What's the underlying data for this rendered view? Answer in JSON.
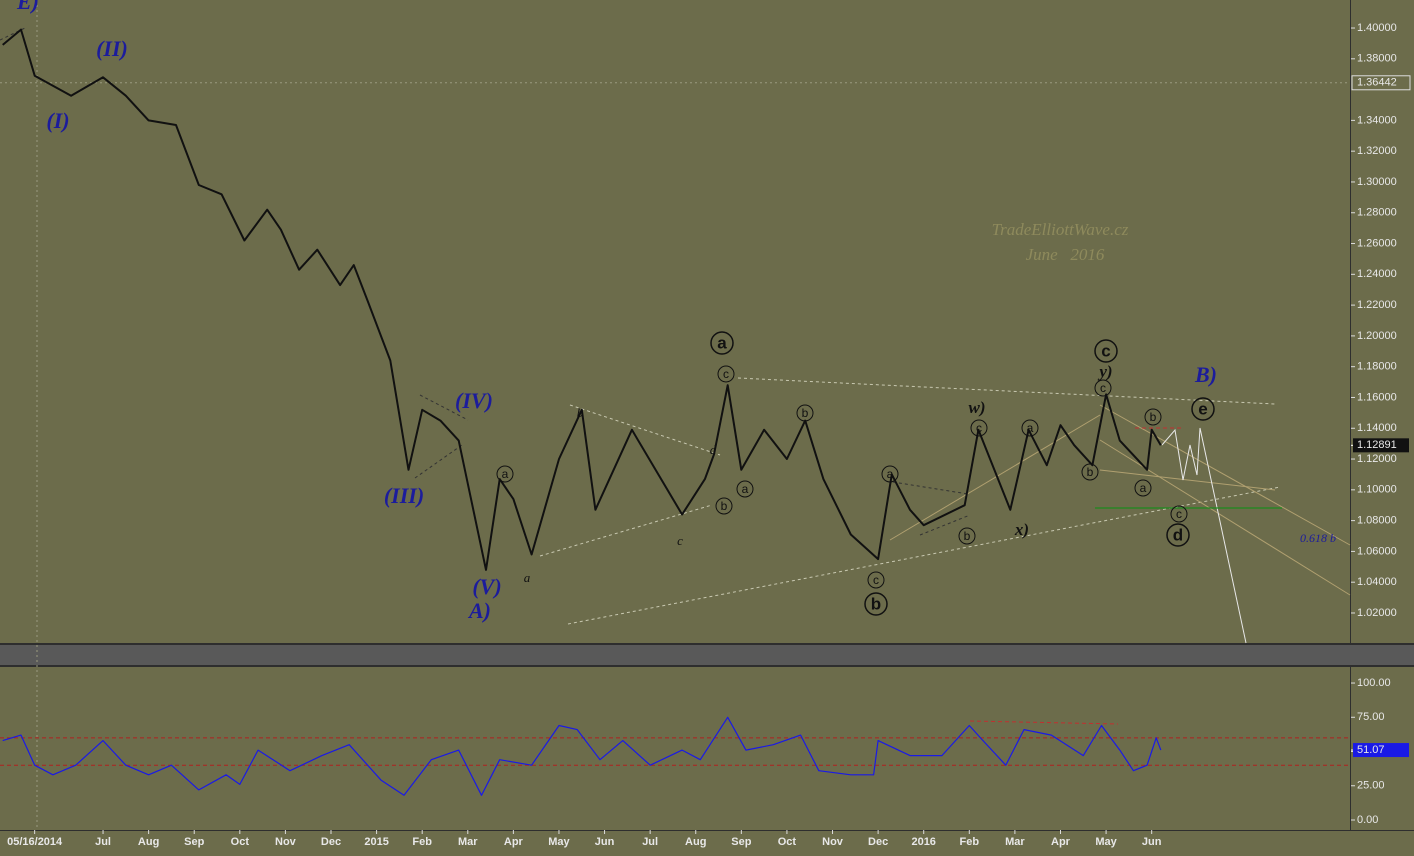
{
  "chart_data": [
    {
      "type": "line",
      "color": "#111111",
      "x": [
        -0.2,
        0.2,
        0.5,
        1.3,
        2.0,
        2.5,
        3.0,
        3.6,
        4.1,
        4.6,
        5.1,
        5.6,
        5.9,
        6.3,
        6.7,
        7.2,
        7.5,
        7.8,
        8.3,
        8.7,
        9.0,
        9.4,
        9.8,
        10.4,
        10.7,
        11.0,
        11.4,
        12.0,
        12.5,
        12.8,
        13.6,
        14.7,
        15.2,
        15.4,
        15.7,
        16.0,
        16.5,
        17.0,
        17.4,
        17.8,
        18.4,
        19.0,
        19.3,
        19.7,
        20.0,
        20.9,
        21.2,
        21.9,
        22.1,
        22.3,
        22.7,
        23.0,
        23.3,
        23.7,
        24.0,
        24.3,
        24.9,
        25.0,
        25.2
      ],
      "values": [
        1.389,
        1.399,
        1.369,
        1.356,
        1.368,
        1.356,
        1.34,
        1.337,
        1.298,
        1.292,
        1.262,
        1.282,
        1.269,
        1.243,
        1.256,
        1.233,
        1.246,
        1.223,
        1.184,
        1.113,
        1.152,
        1.145,
        1.132,
        1.048,
        1.107,
        1.094,
        1.058,
        1.12,
        1.152,
        1.087,
        1.139,
        1.084,
        1.107,
        1.123,
        1.168,
        1.113,
        1.139,
        1.12,
        1.145,
        1.107,
        1.071,
        1.055,
        1.11,
        1.087,
        1.077,
        1.09,
        1.139,
        1.087,
        1.113,
        1.139,
        1.116,
        1.142,
        1.129,
        1.116,
        1.162,
        1.132,
        1.113,
        1.139,
        1.129
      ],
      "xlim": [
        -0.26,
        29.35
      ],
      "ylim": [
        1.0005,
        1.4182
      ],
      "yticks": [
        {
          "value": 1.02,
          "label": "1.02000"
        },
        {
          "value": 1.04,
          "label": "1.04000"
        },
        {
          "value": 1.06,
          "label": "1.06000"
        },
        {
          "value": 1.08,
          "label": "1.08000"
        },
        {
          "value": 1.1,
          "label": "1.10000"
        },
        {
          "value": 1.12,
          "label": "1.12000"
        },
        {
          "value": 1.14,
          "label": "1.14000"
        },
        {
          "value": 1.16,
          "label": "1.16000"
        },
        {
          "value": 1.18,
          "label": "1.18000"
        },
        {
          "value": 1.2,
          "label": "1.20000"
        },
        {
          "value": 1.22,
          "label": "1.22000"
        },
        {
          "value": 1.24,
          "label": "1.24000"
        },
        {
          "value": 1.26,
          "label": "1.26000"
        },
        {
          "value": 1.28,
          "label": "1.28000"
        },
        {
          "value": 1.3,
          "label": "1.30000"
        },
        {
          "value": 1.32,
          "label": "1.32000"
        },
        {
          "value": 1.34,
          "label": "1.34000"
        },
        {
          "value": 1.38,
          "label": "1.38000"
        },
        {
          "value": 1.4,
          "label": "1.40000"
        }
      ],
      "price_marker": 1.36442,
      "current_value": 1.12891,
      "annotations": [
        "E)",
        "(II)",
        "(I)",
        "(IV)",
        "(III)",
        "(V)",
        "A)",
        "a",
        "b",
        "c",
        "d",
        "a",
        "c",
        "b",
        "a",
        "b",
        "a",
        "c",
        "b",
        "a",
        "b",
        "w)",
        "c",
        "x)",
        "a",
        "b",
        "c",
        "y)",
        "c",
        "b",
        "a",
        "c",
        "d",
        "e",
        "B)",
        "0.618 b"
      ],
      "watermark": [
        "TradeElliottWave.cz",
        "June   2016"
      ]
    },
    {
      "type": "line",
      "color": "#1a1ae6",
      "x": [
        -0.2,
        0.2,
        0.5,
        0.9,
        1.4,
        2.0,
        2.5,
        3.0,
        3.5,
        4.1,
        4.7,
        5.0,
        5.4,
        6.1,
        6.8,
        7.4,
        8.1,
        8.6,
        9.2,
        9.8,
        10.3,
        10.7,
        11.4,
        12.0,
        12.4,
        12.9,
        13.4,
        14.0,
        14.7,
        15.1,
        15.7,
        16.1,
        16.7,
        17.3,
        17.7,
        18.4,
        18.9,
        19.0,
        19.7,
        20.4,
        21.0,
        21.3,
        21.8,
        22.2,
        22.8,
        23.5,
        23.9,
        24.3,
        24.6,
        24.9,
        25.1,
        25.2
      ],
      "values": [
        58,
        62,
        40,
        33,
        40,
        58,
        40,
        33,
        40,
        22,
        33,
        26,
        51,
        36,
        47,
        55,
        29,
        18,
        44,
        51,
        18,
        44,
        40,
        69,
        66,
        44,
        58,
        40,
        51,
        44,
        75,
        51,
        55,
        62,
        36,
        33,
        33,
        58,
        47,
        47,
        69,
        58,
        40,
        66,
        62,
        47,
        69,
        51,
        36,
        40,
        60,
        51
      ],
      "xlim": [
        -0.26,
        29.35
      ],
      "ylim": [
        -7.3,
        111.7
      ],
      "yticks": [
        {
          "value": 0,
          "label": "0.00"
        },
        {
          "value": 25,
          "label": "25.00"
        },
        {
          "value": 50,
          "label": "50.00"
        },
        {
          "value": 75,
          "label": "75.00"
        },
        {
          "value": 100,
          "label": "100.00"
        }
      ],
      "reference_lines": [
        60,
        40
      ],
      "current_value": 51.07,
      "xticks": [
        {
          "value": 0.5,
          "label": "05/16/2014"
        },
        {
          "value": 2,
          "label": "Jul"
        },
        {
          "value": 3,
          "label": "Aug"
        },
        {
          "value": 4,
          "label": "Sep"
        },
        {
          "value": 5,
          "label": "Oct"
        },
        {
          "value": 6,
          "label": "Nov"
        },
        {
          "value": 7,
          "label": "Dec"
        },
        {
          "value": 8,
          "label": "2015"
        },
        {
          "value": 9,
          "label": "Feb"
        },
        {
          "value": 10,
          "label": "Mar"
        },
        {
          "value": 11,
          "label": "Apr"
        },
        {
          "value": 12,
          "label": "May"
        },
        {
          "value": 13,
          "label": "Jun"
        },
        {
          "value": 14,
          "label": "Jul"
        },
        {
          "value": 15,
          "label": "Aug"
        },
        {
          "value": 16,
          "label": "Sep"
        },
        {
          "value": 17,
          "label": "Oct"
        },
        {
          "value": 18,
          "label": "Nov"
        },
        {
          "value": 19,
          "label": "Dec"
        },
        {
          "value": 20,
          "label": "2016"
        },
        {
          "value": 21,
          "label": "Feb"
        },
        {
          "value": 22,
          "label": "Mar"
        },
        {
          "value": 23,
          "label": "Apr"
        },
        {
          "value": 24,
          "label": "May"
        },
        {
          "value": 25,
          "label": "Jun"
        }
      ]
    }
  ]
}
